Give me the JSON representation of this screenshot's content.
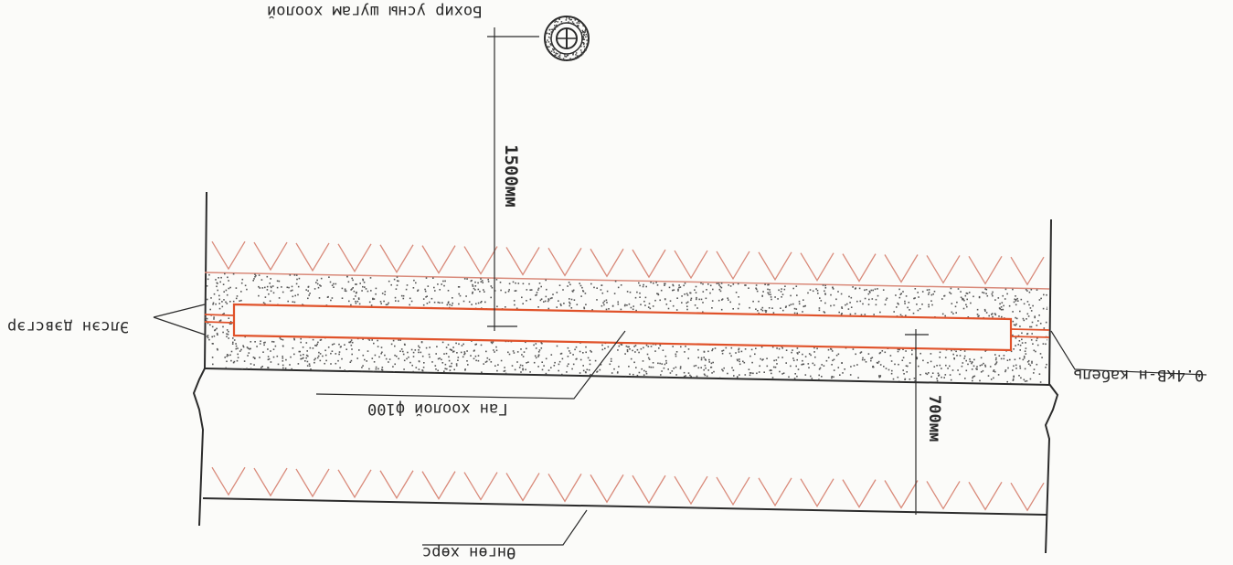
{
  "labels": {
    "top_pipe": "Бохир усны шугам хоолой",
    "sand_bed": "Элсэн дэвсгэр",
    "steel_pipe": "Ган хоолой ф100",
    "cable": "0.4кВ-н кабель",
    "natural_ground": "Өнгөн хөрс",
    "dim_top": "1500мм",
    "dim_depth": "700мм"
  },
  "colors": {
    "line": "#2b2b2b",
    "hatch": "#d98a7a",
    "pipe": "#e0522a",
    "speckle": "#555555"
  }
}
